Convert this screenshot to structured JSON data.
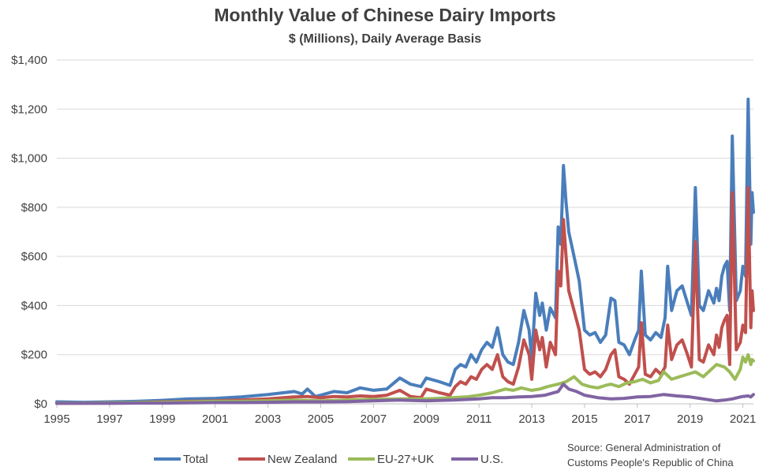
{
  "chart_data": {
    "type": "line",
    "title": "Monthly Value of Chinese Dairy Imports",
    "subtitle": "$ (Millions), Daily Average Basis",
    "xlabel": "",
    "ylabel": "",
    "ylim": [
      0,
      1400
    ],
    "xlim": [
      1995,
      2021.4
    ],
    "yticks": [
      0,
      200,
      400,
      600,
      800,
      1000,
      1200,
      1400
    ],
    "ytick_labels": [
      "$0",
      "$200",
      "$400",
      "$600",
      "$800",
      "$1,000",
      "$1,200",
      "$1,400"
    ],
    "xticks": [
      1995,
      1997,
      1999,
      2001,
      2003,
      2005,
      2007,
      2009,
      2011,
      2013,
      2015,
      2017,
      2019,
      2021
    ],
    "xtick_labels": [
      "1995",
      "1997",
      "1999",
      "2001",
      "2003",
      "2005",
      "2007",
      "2009",
      "2011",
      "2013",
      "2015",
      "2017",
      "2019",
      "2021"
    ],
    "grid": "horizontal",
    "legend_position": "bottom",
    "series": [
      {
        "name": "Total",
        "color": "#4a7ebb",
        "points": [
          [
            1995,
            8
          ],
          [
            1996,
            6
          ],
          [
            1997,
            8
          ],
          [
            1998,
            10
          ],
          [
            1999,
            14
          ],
          [
            2000,
            20
          ],
          [
            2001,
            22
          ],
          [
            2002,
            28
          ],
          [
            2003,
            38
          ],
          [
            2004,
            50
          ],
          [
            2004.3,
            40
          ],
          [
            2004.5,
            60
          ],
          [
            2004.8,
            30
          ],
          [
            2005,
            35
          ],
          [
            2005.5,
            50
          ],
          [
            2006,
            45
          ],
          [
            2006.5,
            65
          ],
          [
            2007,
            55
          ],
          [
            2007.5,
            60
          ],
          [
            2008,
            105
          ],
          [
            2008.4,
            80
          ],
          [
            2008.8,
            70
          ],
          [
            2009,
            105
          ],
          [
            2009.5,
            90
          ],
          [
            2009.9,
            75
          ],
          [
            2010.1,
            140
          ],
          [
            2010.3,
            160
          ],
          [
            2010.5,
            150
          ],
          [
            2010.7,
            200
          ],
          [
            2010.9,
            170
          ],
          [
            2011.1,
            220
          ],
          [
            2011.3,
            250
          ],
          [
            2011.5,
            230
          ],
          [
            2011.7,
            310
          ],
          [
            2011.9,
            200
          ],
          [
            2012.1,
            170
          ],
          [
            2012.3,
            160
          ],
          [
            2012.5,
            250
          ],
          [
            2012.7,
            380
          ],
          [
            2012.9,
            300
          ],
          [
            2013.0,
            180
          ],
          [
            2013.15,
            450
          ],
          [
            2013.3,
            360
          ],
          [
            2013.4,
            410
          ],
          [
            2013.55,
            300
          ],
          [
            2013.7,
            390
          ],
          [
            2013.9,
            350
          ],
          [
            2014.0,
            720
          ],
          [
            2014.1,
            650
          ],
          [
            2014.2,
            970
          ],
          [
            2014.3,
            820
          ],
          [
            2014.4,
            700
          ],
          [
            2014.6,
            600
          ],
          [
            2014.8,
            500
          ],
          [
            2015.0,
            300
          ],
          [
            2015.2,
            280
          ],
          [
            2015.4,
            290
          ],
          [
            2015.6,
            250
          ],
          [
            2015.8,
            280
          ],
          [
            2016.0,
            430
          ],
          [
            2016.15,
            420
          ],
          [
            2016.3,
            250
          ],
          [
            2016.5,
            240
          ],
          [
            2016.7,
            200
          ],
          [
            2016.9,
            260
          ],
          [
            2017.05,
            300
          ],
          [
            2017.15,
            540
          ],
          [
            2017.3,
            280
          ],
          [
            2017.5,
            260
          ],
          [
            2017.7,
            290
          ],
          [
            2017.9,
            270
          ],
          [
            2018.05,
            350
          ],
          [
            2018.15,
            560
          ],
          [
            2018.3,
            380
          ],
          [
            2018.5,
            460
          ],
          [
            2018.7,
            480
          ],
          [
            2018.9,
            410
          ],
          [
            2019.05,
            360
          ],
          [
            2019.2,
            880
          ],
          [
            2019.35,
            400
          ],
          [
            2019.5,
            380
          ],
          [
            2019.7,
            460
          ],
          [
            2019.9,
            410
          ],
          [
            2020.0,
            470
          ],
          [
            2020.1,
            420
          ],
          [
            2020.2,
            520
          ],
          [
            2020.3,
            560
          ],
          [
            2020.4,
            580
          ],
          [
            2020.5,
            380
          ],
          [
            2020.6,
            1090
          ],
          [
            2020.75,
            420
          ],
          [
            2020.9,
            460
          ],
          [
            2021.0,
            560
          ],
          [
            2021.1,
            520
          ],
          [
            2021.2,
            1240
          ],
          [
            2021.3,
            650
          ],
          [
            2021.35,
            860
          ],
          [
            2021.4,
            780
          ]
        ]
      },
      {
        "name": "New Zealand",
        "color": "#c0504d",
        "points": [
          [
            1995,
            2
          ],
          [
            1996,
            3
          ],
          [
            1997,
            4
          ],
          [
            1998,
            5
          ],
          [
            1999,
            8
          ],
          [
            2000,
            10
          ],
          [
            2001,
            12
          ],
          [
            2002,
            15
          ],
          [
            2003,
            20
          ],
          [
            2004,
            28
          ],
          [
            2004.5,
            30
          ],
          [
            2005,
            25
          ],
          [
            2005.5,
            30
          ],
          [
            2006,
            28
          ],
          [
            2006.5,
            32
          ],
          [
            2007,
            30
          ],
          [
            2007.5,
            35
          ],
          [
            2008,
            55
          ],
          [
            2008.4,
            30
          ],
          [
            2008.8,
            25
          ],
          [
            2009,
            60
          ],
          [
            2009.5,
            45
          ],
          [
            2009.9,
            35
          ],
          [
            2010.1,
            70
          ],
          [
            2010.3,
            90
          ],
          [
            2010.5,
            80
          ],
          [
            2010.7,
            110
          ],
          [
            2010.9,
            100
          ],
          [
            2011.1,
            140
          ],
          [
            2011.3,
            160
          ],
          [
            2011.5,
            140
          ],
          [
            2011.7,
            200
          ],
          [
            2011.9,
            110
          ],
          [
            2012.1,
            90
          ],
          [
            2012.3,
            80
          ],
          [
            2012.5,
            150
          ],
          [
            2012.7,
            260
          ],
          [
            2012.9,
            200
          ],
          [
            2013.0,
            100
          ],
          [
            2013.15,
            300
          ],
          [
            2013.3,
            220
          ],
          [
            2013.4,
            270
          ],
          [
            2013.55,
            150
          ],
          [
            2013.7,
            250
          ],
          [
            2013.9,
            200
          ],
          [
            2014.0,
            540
          ],
          [
            2014.1,
            480
          ],
          [
            2014.2,
            750
          ],
          [
            2014.3,
            600
          ],
          [
            2014.4,
            460
          ],
          [
            2014.6,
            380
          ],
          [
            2014.8,
            300
          ],
          [
            2015.0,
            140
          ],
          [
            2015.2,
            120
          ],
          [
            2015.4,
            130
          ],
          [
            2015.6,
            110
          ],
          [
            2015.8,
            140
          ],
          [
            2016.0,
            200
          ],
          [
            2016.15,
            220
          ],
          [
            2016.3,
            110
          ],
          [
            2016.5,
            100
          ],
          [
            2016.7,
            80
          ],
          [
            2016.9,
            120
          ],
          [
            2017.05,
            150
          ],
          [
            2017.15,
            330
          ],
          [
            2017.3,
            120
          ],
          [
            2017.5,
            110
          ],
          [
            2017.7,
            140
          ],
          [
            2017.9,
            120
          ],
          [
            2018.05,
            150
          ],
          [
            2018.15,
            320
          ],
          [
            2018.3,
            180
          ],
          [
            2018.5,
            240
          ],
          [
            2018.7,
            260
          ],
          [
            2018.9,
            200
          ],
          [
            2019.05,
            150
          ],
          [
            2019.2,
            660
          ],
          [
            2019.35,
            180
          ],
          [
            2019.5,
            170
          ],
          [
            2019.7,
            240
          ],
          [
            2019.9,
            200
          ],
          [
            2020.0,
            280
          ],
          [
            2020.1,
            230
          ],
          [
            2020.2,
            310
          ],
          [
            2020.3,
            340
          ],
          [
            2020.4,
            360
          ],
          [
            2020.5,
            160
          ],
          [
            2020.6,
            860
          ],
          [
            2020.75,
            220
          ],
          [
            2020.9,
            250
          ],
          [
            2021.0,
            320
          ],
          [
            2021.1,
            290
          ],
          [
            2021.2,
            880
          ],
          [
            2021.3,
            310
          ],
          [
            2021.35,
            460
          ],
          [
            2021.4,
            380
          ]
        ]
      },
      {
        "name": "EU-27+UK",
        "color": "#9bbb59",
        "points": [
          [
            1995,
            3
          ],
          [
            1996,
            3
          ],
          [
            1997,
            4
          ],
          [
            1998,
            5
          ],
          [
            1999,
            6
          ],
          [
            2000,
            8
          ],
          [
            2001,
            10
          ],
          [
            2002,
            10
          ],
          [
            2003,
            12
          ],
          [
            2004,
            15
          ],
          [
            2005,
            12
          ],
          [
            2006,
            15
          ],
          [
            2007,
            18
          ],
          [
            2008,
            20
          ],
          [
            2009,
            20
          ],
          [
            2010,
            25
          ],
          [
            2010.5,
            28
          ],
          [
            2011,
            35
          ],
          [
            2011.5,
            45
          ],
          [
            2012,
            60
          ],
          [
            2012.3,
            55
          ],
          [
            2012.6,
            65
          ],
          [
            2013,
            55
          ],
          [
            2013.3,
            60
          ],
          [
            2013.6,
            70
          ],
          [
            2014,
            80
          ],
          [
            2014.3,
            90
          ],
          [
            2014.6,
            110
          ],
          [
            2014.9,
            80
          ],
          [
            2015.2,
            70
          ],
          [
            2015.5,
            65
          ],
          [
            2015.8,
            75
          ],
          [
            2016,
            80
          ],
          [
            2016.3,
            70
          ],
          [
            2016.6,
            85
          ],
          [
            2016.9,
            90
          ],
          [
            2017.2,
            100
          ],
          [
            2017.5,
            85
          ],
          [
            2017.8,
            95
          ],
          [
            2018,
            130
          ],
          [
            2018.3,
            100
          ],
          [
            2018.6,
            110
          ],
          [
            2018.9,
            120
          ],
          [
            2019.2,
            130
          ],
          [
            2019.5,
            110
          ],
          [
            2019.8,
            140
          ],
          [
            2020,
            160
          ],
          [
            2020.3,
            150
          ],
          [
            2020.5,
            130
          ],
          [
            2020.7,
            100
          ],
          [
            2020.9,
            140
          ],
          [
            2021.0,
            190
          ],
          [
            2021.1,
            170
          ],
          [
            2021.2,
            200
          ],
          [
            2021.3,
            160
          ],
          [
            2021.35,
            180
          ],
          [
            2021.4,
            175
          ]
        ]
      },
      {
        "name": "U.S.",
        "color": "#8064a2",
        "points": [
          [
            1995,
            2
          ],
          [
            1996,
            2
          ],
          [
            1997,
            2
          ],
          [
            1998,
            3
          ],
          [
            1999,
            3
          ],
          [
            2000,
            4
          ],
          [
            2001,
            5
          ],
          [
            2002,
            5
          ],
          [
            2003,
            6
          ],
          [
            2004,
            8
          ],
          [
            2005,
            8
          ],
          [
            2006,
            9
          ],
          [
            2007,
            12
          ],
          [
            2008,
            15
          ],
          [
            2009,
            12
          ],
          [
            2010,
            15
          ],
          [
            2011,
            20
          ],
          [
            2011.5,
            25
          ],
          [
            2012,
            25
          ],
          [
            2012.5,
            28
          ],
          [
            2013,
            30
          ],
          [
            2013.5,
            35
          ],
          [
            2014,
            50
          ],
          [
            2014.2,
            80
          ],
          [
            2014.4,
            60
          ],
          [
            2014.7,
            50
          ],
          [
            2015,
            35
          ],
          [
            2015.5,
            25
          ],
          [
            2016,
            20
          ],
          [
            2016.5,
            22
          ],
          [
            2017,
            28
          ],
          [
            2017.5,
            30
          ],
          [
            2018,
            38
          ],
          [
            2018.5,
            32
          ],
          [
            2019,
            28
          ],
          [
            2019.5,
            20
          ],
          [
            2020,
            12
          ],
          [
            2020.3,
            15
          ],
          [
            2020.6,
            20
          ],
          [
            2020.9,
            28
          ],
          [
            2021.0,
            30
          ],
          [
            2021.2,
            32
          ],
          [
            2021.3,
            28
          ],
          [
            2021.4,
            38
          ]
        ]
      }
    ]
  },
  "source_lines": [
    "Source: General Administration of",
    "Customs People's Republic of China"
  ]
}
